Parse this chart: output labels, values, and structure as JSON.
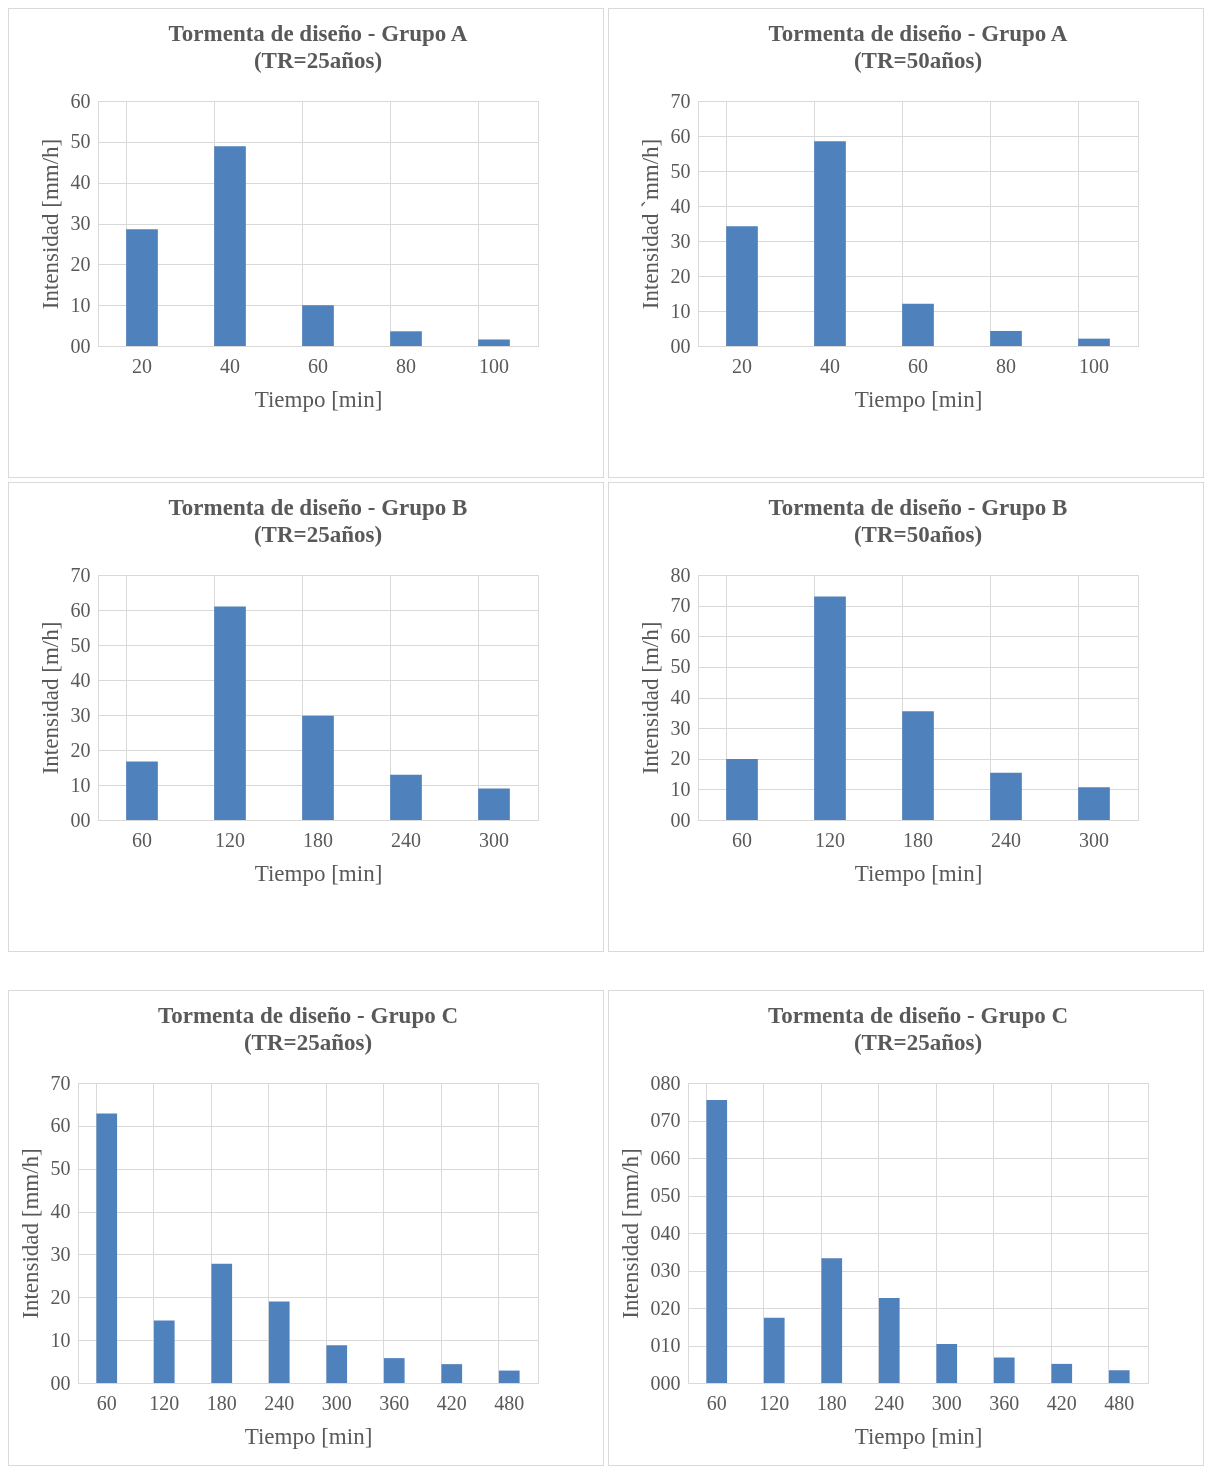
{
  "chart_data": [
    {
      "type": "bar",
      "title": "Tormenta de diseño - Grupo A",
      "subtitle": "(TR=25años)",
      "xlabel": "Tiempo [min]",
      "ylabel": "Intensidad [mm/h]",
      "categories": [
        "20",
        "40",
        "60",
        "80",
        "100"
      ],
      "values": [
        28.6,
        48.9,
        10.0,
        3.6,
        1.6
      ],
      "color": "#4f81bd",
      "ylim": [
        0,
        60
      ],
      "yticks": [
        {
          "value": 0,
          "label": "00"
        },
        10,
        20,
        30,
        40,
        50,
        60
      ],
      "grid": true
    },
    {
      "type": "bar",
      "title": "Tormenta de diseño - Grupo A",
      "subtitle": "(TR=50años)",
      "xlabel": "Tiempo [min]",
      "ylabel": "Intensidad `mm/h]",
      "categories": [
        "20",
        "40",
        "60",
        "80",
        "100"
      ],
      "values": [
        34.2,
        58.5,
        12.1,
        4.3,
        2.1
      ],
      "color": "#4f81bd",
      "ylim": [
        0,
        70
      ],
      "yticks": [
        {
          "value": 0,
          "label": "00"
        },
        10,
        20,
        30,
        40,
        50,
        60,
        70
      ],
      "grid": true
    },
    {
      "type": "bar",
      "title": "Tormenta de diseño - Grupo B",
      "subtitle": "(TR=25años)",
      "xlabel": "Tiempo [min]",
      "ylabel": "Intensidad [m/h]",
      "categories": [
        "60",
        "120",
        "180",
        "240",
        "300"
      ],
      "values": [
        16.7,
        61.0,
        29.8,
        12.9,
        9.0
      ],
      "color": "#4f81bd",
      "ylim": [
        0,
        70
      ],
      "yticks": [
        {
          "value": 0,
          "label": "00"
        },
        10,
        20,
        30,
        40,
        50,
        60,
        70
      ],
      "grid": true
    },
    {
      "type": "bar",
      "title": "Tormenta de diseño - Grupo B",
      "subtitle": "(TR=50años)",
      "xlabel": "Tiempo [min]",
      "ylabel": "Intensidad [m/h]",
      "categories": [
        "60",
        "120",
        "180",
        "240",
        "300"
      ],
      "values": [
        19.9,
        73.0,
        35.5,
        15.4,
        10.7
      ],
      "color": "#4f81bd",
      "ylim": [
        0,
        80
      ],
      "yticks": [
        {
          "value": 0,
          "label": "00"
        },
        10,
        20,
        30,
        40,
        50,
        60,
        70,
        80
      ],
      "grid": true
    },
    {
      "type": "bar",
      "title": "Tormenta de diseño - Grupo C",
      "subtitle": "(TR=25años)",
      "xlabel": "Tiempo [min]",
      "ylabel": "Intensidad [mm/h]",
      "categories": [
        "60",
        "120",
        "180",
        "240",
        "300",
        "360",
        "420",
        "480"
      ],
      "values": [
        62.9,
        14.6,
        27.8,
        19.0,
        8.8,
        5.8,
        4.4,
        2.9
      ],
      "color": "#4f81bd",
      "ylim": [
        0,
        70
      ],
      "yticks": [
        {
          "value": 0,
          "label": "00"
        },
        10,
        20,
        30,
        40,
        50,
        60,
        70
      ],
      "grid": true
    },
    {
      "type": "bar",
      "title": "Tormenta de diseño - Grupo C",
      "subtitle": "(TR=25años)",
      "xlabel": "Tiempo [min]",
      "ylabel": "Intensidad [mm/h]",
      "categories": [
        "60",
        "120",
        "180",
        "240",
        "300",
        "360",
        "420",
        "480"
      ],
      "values": [
        75.5,
        17.4,
        33.3,
        22.7,
        10.4,
        6.8,
        5.1,
        3.4
      ],
      "color": "#4f81bd",
      "ylim": [
        0,
        80
      ],
      "yticks": [
        {
          "value": 0,
          "label": "000"
        },
        {
          "value": 10,
          "label": "010"
        },
        {
          "value": 20,
          "label": "020"
        },
        {
          "value": 30,
          "label": "030"
        },
        {
          "value": 40,
          "label": "040"
        },
        {
          "value": 50,
          "label": "050"
        },
        {
          "value": 60,
          "label": "060"
        },
        {
          "value": 70,
          "label": "070"
        },
        {
          "value": 80,
          "label": "080"
        }
      ],
      "grid": true
    }
  ]
}
